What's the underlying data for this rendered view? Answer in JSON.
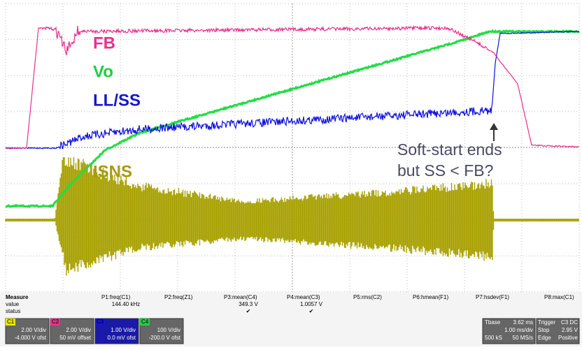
{
  "annotations": {
    "fb": "FB",
    "vo": "Vo",
    "llss": "LL/SS",
    "isns": "ISNS",
    "note_line1": "Soft-start ends",
    "note_line2": "but SS < FB?"
  },
  "measure": {
    "title": "Measure",
    "row_labels": [
      "value",
      "status"
    ],
    "columns": [
      {
        "name": "P1:freq(C1)",
        "value": "144.40 kHz"
      },
      {
        "name": "P2:freq(Z1)"
      },
      {
        "name": "P3:mean(C4)",
        "value": "349.3 V",
        "status": "✔"
      },
      {
        "name": "P4:mean(C3)",
        "value": "1.0057 V",
        "status": "✔"
      },
      {
        "name": "P5:rms(C2)"
      },
      {
        "name": "P6:hmean(F1)"
      },
      {
        "name": "P7:hsdev(F1)"
      },
      {
        "name": "P8:max(C1)"
      }
    ]
  },
  "channels": [
    {
      "name": "C1",
      "scale": "2.00 V/div",
      "offset": "-4.000 V ofst"
    },
    {
      "name": "C2",
      "scale": "2.00 V/div",
      "offset": "50 mV offset"
    },
    {
      "name": "C3",
      "scale": "1.00 V/div",
      "offset": "0.0 mV ofst"
    },
    {
      "name": "C4",
      "scale": "100 V/div",
      "offset": "-200.0 V ofst"
    }
  ],
  "timebase": {
    "label": "Tbase",
    "delay": "3.62 ms",
    "scale": "1.00 ms/div",
    "samples": "500 kS",
    "rate": "50 MS/s"
  },
  "trigger": {
    "label": "Trigger",
    "coupling": "C3 DC",
    "mode": "Stop",
    "level": "2.95 V",
    "type": "Edge",
    "slope": "Positive"
  }
}
